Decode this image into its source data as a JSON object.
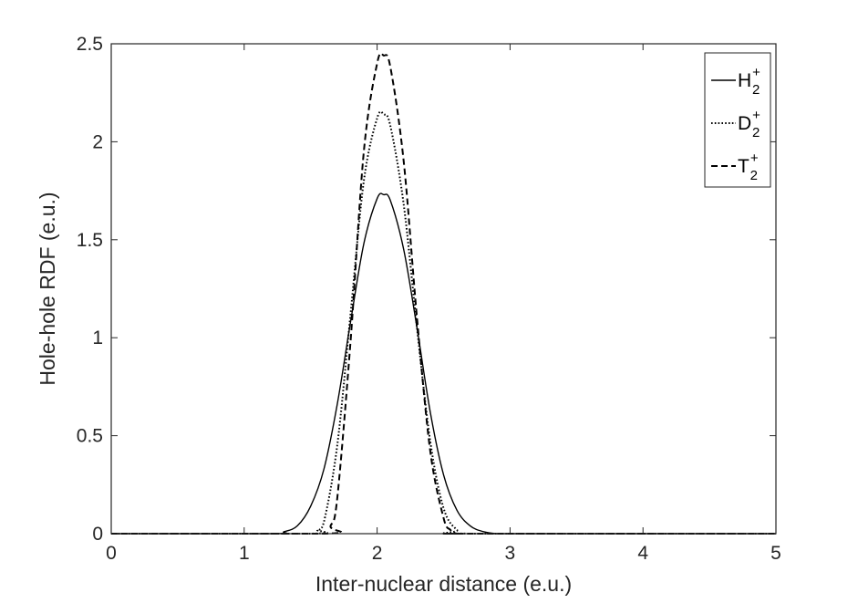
{
  "chart_data": {
    "type": "line",
    "xlabel": "Inter-nuclear distance (e.u.)",
    "ylabel": "Hole-hole RDF (e.u.)",
    "xlim": [
      0,
      5
    ],
    "ylim": [
      0,
      2.5
    ],
    "xticks": [
      "0",
      "1",
      "2",
      "3",
      "4",
      "5"
    ],
    "yticks": [
      "0",
      "0.5",
      "1",
      "1.5",
      "2",
      "2.5"
    ],
    "grid": false,
    "legend_position": "top-right",
    "series": [
      {
        "name": "H",
        "sub": "2",
        "sup": "+",
        "line_style": "solid",
        "color": "#000000",
        "x": [
          0,
          1.2,
          1.3,
          1.4,
          1.5,
          1.6,
          1.7,
          1.8,
          1.9,
          2.0,
          2.05,
          2.1,
          2.2,
          2.3,
          2.4,
          2.5,
          2.6,
          2.7,
          2.8,
          2.9,
          3.0,
          5
        ],
        "y": [
          0,
          0.0,
          0.01,
          0.04,
          0.14,
          0.33,
          0.66,
          1.08,
          1.48,
          1.71,
          1.73,
          1.7,
          1.45,
          1.05,
          0.62,
          0.3,
          0.12,
          0.04,
          0.01,
          0.0,
          0.0,
          0
        ]
      },
      {
        "name": "D",
        "sub": "2",
        "sup": "+",
        "line_style": "dotted",
        "color": "#000000",
        "x": [
          0,
          1.5,
          1.55,
          1.6,
          1.7,
          1.8,
          1.9,
          2.0,
          2.05,
          2.1,
          2.2,
          2.3,
          2.4,
          2.5,
          2.6,
          2.7,
          5
        ],
        "y": [
          0,
          0.0,
          0.02,
          0.06,
          0.45,
          1.12,
          1.8,
          2.12,
          2.14,
          2.08,
          1.68,
          1.05,
          0.47,
          0.13,
          0.02,
          0.0,
          0
        ]
      },
      {
        "name": "T",
        "sub": "2",
        "sup": "+",
        "line_style": "dashed",
        "color": "#000000",
        "x": [
          0,
          1.6,
          1.65,
          1.7,
          1.8,
          1.9,
          2.0,
          2.05,
          2.1,
          2.2,
          2.3,
          2.4,
          2.5,
          2.55,
          2.6,
          2.7,
          5
        ],
        "y": [
          0,
          0.0,
          0.04,
          0.18,
          0.98,
          1.95,
          2.4,
          2.44,
          2.38,
          1.9,
          1.1,
          0.42,
          0.08,
          0.02,
          0.0,
          0.0,
          0
        ]
      }
    ]
  }
}
